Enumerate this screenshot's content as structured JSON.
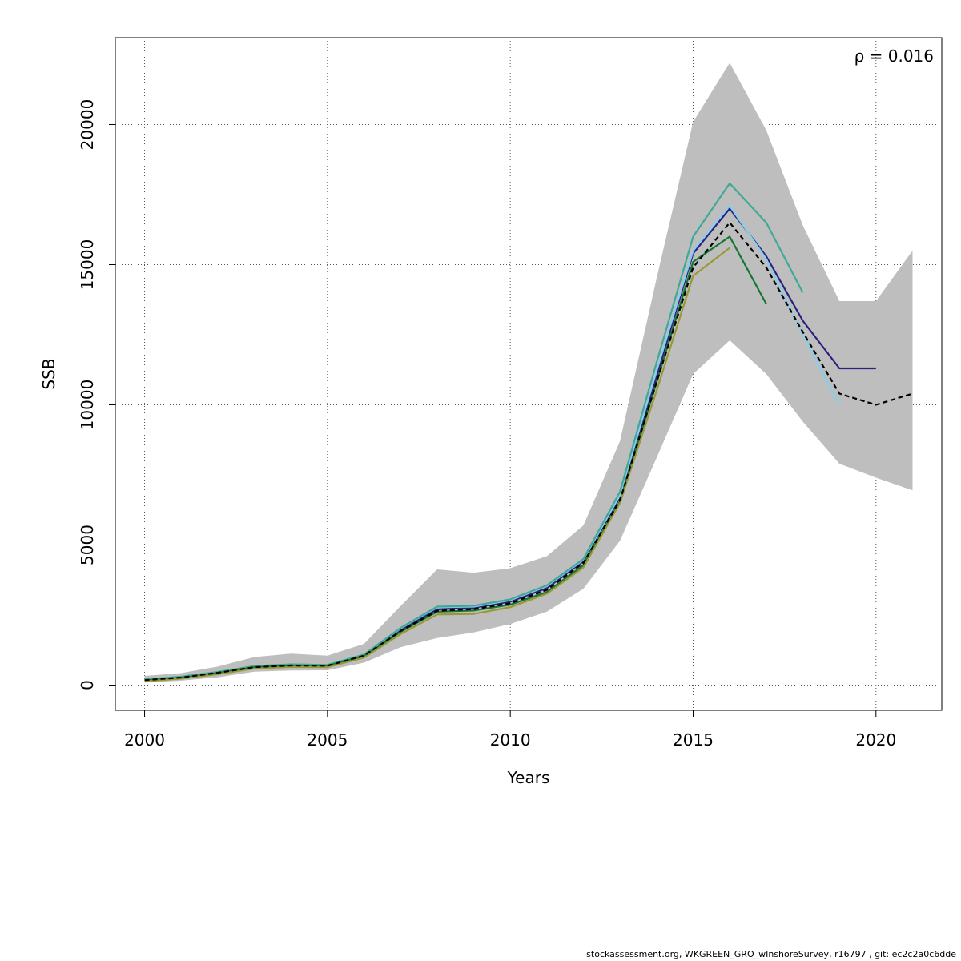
{
  "chart_data": {
    "type": "line",
    "xlabel": "Years",
    "ylabel": "SSB",
    "xlim": [
      1999.2,
      2021.8
    ],
    "ylim": [
      -900,
      23100
    ],
    "x_ticks": [
      2000,
      2005,
      2010,
      2015,
      2020
    ],
    "y_ticks": [
      0,
      5000,
      10000,
      15000,
      20000
    ],
    "grid": true,
    "annotation": "ρ = 0.016",
    "confidence_band": {
      "x": [
        2000,
        2001,
        2002,
        2003,
        2004,
        2005,
        2006,
        2007,
        2008,
        2009,
        2010,
        2011,
        2012,
        2013,
        2014,
        2015,
        2016,
        2017,
        2018,
        2019,
        2020,
        2021
      ],
      "upper": [
        330,
        430,
        660,
        1000,
        1120,
        1050,
        1470,
        2820,
        4130,
        4010,
        4170,
        4600,
        5700,
        8700,
        14500,
        20100,
        22200,
        19800,
        16400,
        13700,
        13700,
        15500
      ],
      "lower": [
        90,
        160,
        280,
        480,
        520,
        530,
        800,
        1350,
        1680,
        1880,
        2180,
        2620,
        3440,
        5150,
        8100,
        11100,
        12300,
        11100,
        9400,
        7900,
        7400,
        6950
      ],
      "color": "#bebebe"
    },
    "series": [
      {
        "x": [
          2000,
          2001,
          2002,
          2003,
          2004,
          2005,
          2006,
          2007,
          2008,
          2009,
          2010,
          2011,
          2012,
          2013,
          2014,
          2015,
          2016,
          2017,
          2018,
          2019,
          2020,
          2021
        ],
        "values": [
          180,
          270,
          440,
          640,
          700,
          690,
          1050,
          1930,
          2650,
          2710,
          2920,
          3400,
          4360,
          6600,
          10800,
          14900,
          16500,
          14900,
          12600,
          10400,
          10000,
          10400
        ],
        "color": "#000000",
        "dashed": true
      },
      {
        "x": [
          2000,
          2001,
          2002,
          2003,
          2004,
          2005,
          2006,
          2007,
          2008,
          2009,
          2010,
          2011,
          2012,
          2013,
          2014,
          2015,
          2016,
          2017,
          2018,
          2019,
          2020
        ],
        "values": [
          190,
          290,
          450,
          650,
          710,
          700,
          1060,
          1970,
          2700,
          2760,
          2980,
          3460,
          4420,
          6700,
          11000,
          15400,
          17000,
          15300,
          13000,
          11300,
          11300
        ],
        "color": "#2d1f7f",
        "dashed": false
      },
      {
        "x": [
          2000,
          2001,
          2002,
          2003,
          2004,
          2005,
          2006,
          2007,
          2008,
          2009,
          2010,
          2011,
          2012,
          2013,
          2014,
          2015,
          2016,
          2017,
          2018,
          2019
        ],
        "values": [
          195,
          295,
          460,
          670,
          730,
          710,
          1080,
          2020,
          2780,
          2800,
          3030,
          3530,
          4470,
          6780,
          11200,
          15500,
          17100,
          15200,
          12500,
          10000
        ],
        "color": "#87ceeb",
        "dashed": false
      },
      {
        "x": [
          2000,
          2001,
          2002,
          2003,
          2004,
          2005,
          2006,
          2007,
          2008,
          2009,
          2010,
          2011,
          2012,
          2013,
          2014,
          2015,
          2016,
          2017,
          2018
        ],
        "values": [
          200,
          300,
          470,
          680,
          740,
          720,
          1090,
          2040,
          2800,
          2830,
          3060,
          3560,
          4500,
          6900,
          11500,
          16000,
          17900,
          16500,
          14000
        ],
        "color": "#3fa897",
        "dashed": false
      },
      {
        "x": [
          2000,
          2001,
          2002,
          2003,
          2004,
          2005,
          2006,
          2007,
          2008,
          2009,
          2010,
          2011,
          2012,
          2013,
          2014,
          2015,
          2016,
          2017
        ],
        "values": [
          170,
          260,
          430,
          640,
          700,
          690,
          1030,
          1900,
          2620,
          2660,
          2870,
          3320,
          4280,
          6550,
          10800,
          15100,
          16000,
          13600
        ],
        "color": "#117733",
        "dashed": false
      },
      {
        "x": [
          2000,
          2001,
          2002,
          2003,
          2004,
          2005,
          2006,
          2007,
          2008,
          2009,
          2010,
          2011,
          2012,
          2013,
          2014,
          2015,
          2016
        ],
        "values": [
          140,
          230,
          390,
          590,
          650,
          640,
          980,
          1820,
          2520,
          2540,
          2780,
          3260,
          4200,
          6500,
          10500,
          14600,
          15600
        ],
        "color": "#999933",
        "dashed": false
      }
    ]
  },
  "footer": "stockassessment.org, WKGREEN_GRO_wInshoreSurvey, r16797 , git: ec2c2a0c6dde"
}
